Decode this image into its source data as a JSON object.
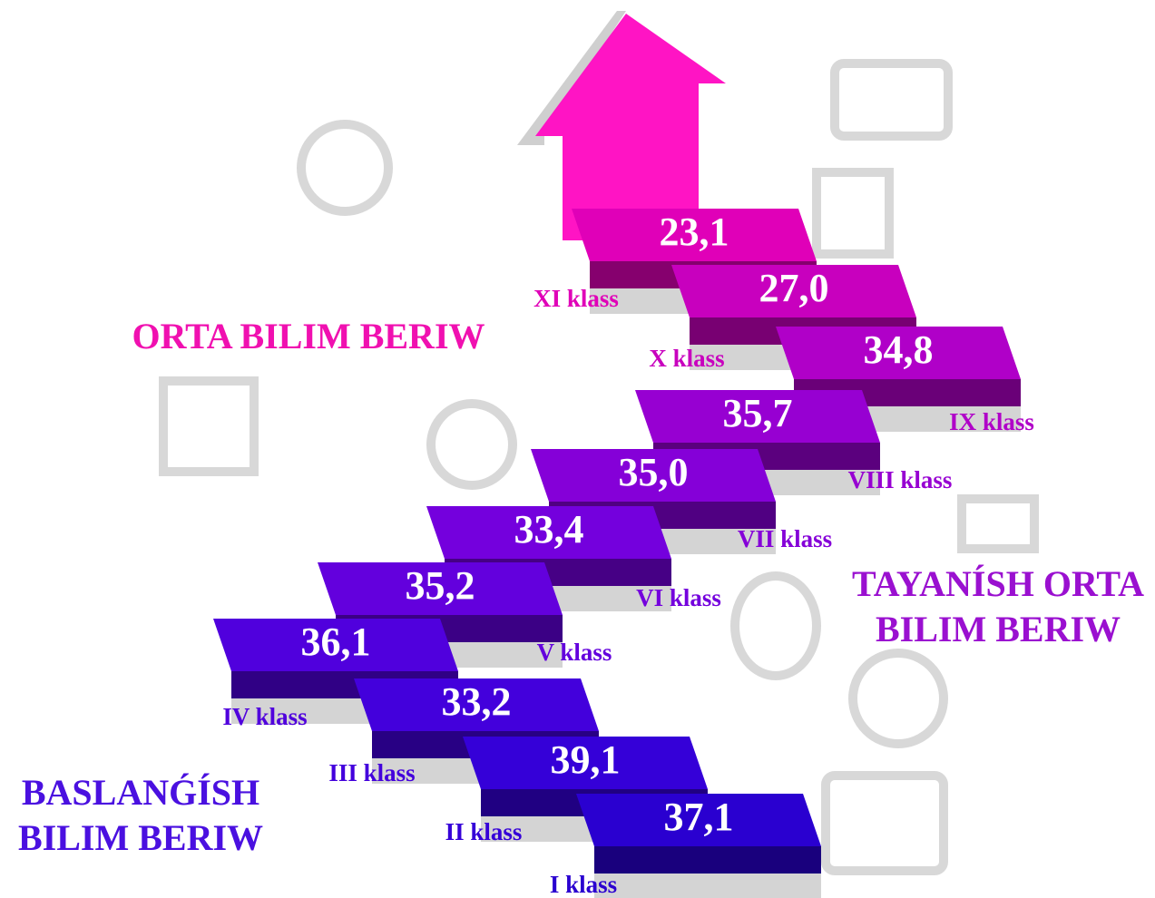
{
  "chart_data": {
    "type": "staircase",
    "categories": [
      "I klass",
      "II klass",
      "III klass",
      "IV klass",
      "V klass",
      "VI klass",
      "VII klass",
      "VIII klass",
      "IX klass",
      "X klass",
      "XI klass"
    ],
    "values": [
      37.1,
      39.1,
      33.2,
      36.1,
      35.2,
      33.4,
      35.0,
      35.7,
      34.8,
      27.0,
      23.1
    ],
    "value_labels": [
      "37,1",
      "39,1",
      "33,2",
      "36,1",
      "35,2",
      "33,4",
      "35,0",
      "35,7",
      "34,8",
      "27,0",
      "23,1"
    ],
    "colors": [
      "#2a00d0",
      "#3500d8",
      "#4300dc",
      "#5000dd",
      "#6300dd",
      "#7400dd",
      "#8500d8",
      "#9700d2",
      "#b000c8",
      "#c800be",
      "#e000b8"
    ],
    "sections": [
      {
        "lines": [
          "BASLANǴÍSH",
          "BILIM BERIW"
        ],
        "color": "#4a10e0"
      },
      {
        "lines": [
          "TAYANÍSH ORTA",
          "BILIM BERIW"
        ],
        "color": "#9a10d0"
      },
      {
        "lines": [
          "ORTA BILIM BERIW"
        ],
        "color": "#f010b0"
      }
    ]
  }
}
